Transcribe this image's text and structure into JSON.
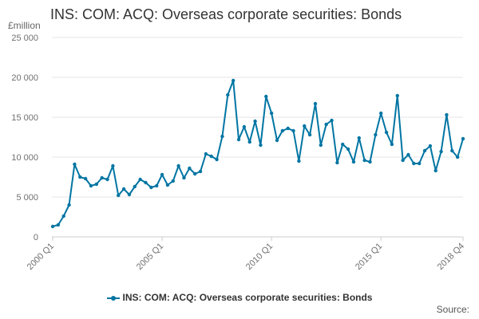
{
  "chart_data": {
    "type": "line",
    "title": "INS: COM: ACQ: Overseas corporate securities: Bonds",
    "ylabel": "£million",
    "xlabel": "",
    "ylim": [
      0,
      25000
    ],
    "yticks": [
      0,
      5000,
      10000,
      15000,
      20000,
      25000
    ],
    "ytick_labels": [
      "0",
      "5 000",
      "10 000",
      "15 000",
      "20 000",
      "25 000"
    ],
    "x_start": "2000 Q1",
    "x_end": "2018 Q4",
    "xtick_labels": [
      {
        "index": 0,
        "label": "2000 Q1"
      },
      {
        "index": 20,
        "label": "2005 Q1"
      },
      {
        "index": 40,
        "label": "2010 Q1"
      },
      {
        "index": 60,
        "label": "2015 Q1"
      },
      {
        "index": 75,
        "label": "2018 Q4"
      }
    ],
    "grid": "horizontal",
    "legend_position": "bottom",
    "series": [
      {
        "name": "INS: COM: ACQ: Overseas corporate securities: Bonds",
        "color": "#0075a3",
        "values": [
          1300,
          1500,
          2600,
          4000,
          9100,
          7500,
          7300,
          6400,
          6600,
          7400,
          7200,
          8900,
          5200,
          6000,
          5300,
          6300,
          7200,
          6800,
          6200,
          6400,
          7800,
          6500,
          7000,
          8900,
          7400,
          8600,
          7900,
          8200,
          10400,
          10100,
          9700,
          12600,
          17800,
          19600,
          12200,
          13800,
          11900,
          14500,
          11500,
          17600,
          15500,
          12100,
          13300,
          13600,
          13300,
          9500,
          13900,
          12800,
          16700,
          11500,
          14100,
          14600,
          9300,
          11600,
          11000,
          9400,
          12400,
          9600,
          9400,
          12800,
          15500,
          13100,
          11600,
          17700,
          9600,
          10300,
          9200,
          9200,
          10800,
          11400,
          8300,
          10700,
          15300,
          10800,
          10000,
          12300
        ]
      }
    ]
  },
  "labels": {
    "title": "INS: COM: ACQ: Overseas corporate securities: Bonds",
    "unit": "£million",
    "legend": "INS: COM: ACQ: Overseas corporate securities: Bonds",
    "source": "Source:"
  }
}
